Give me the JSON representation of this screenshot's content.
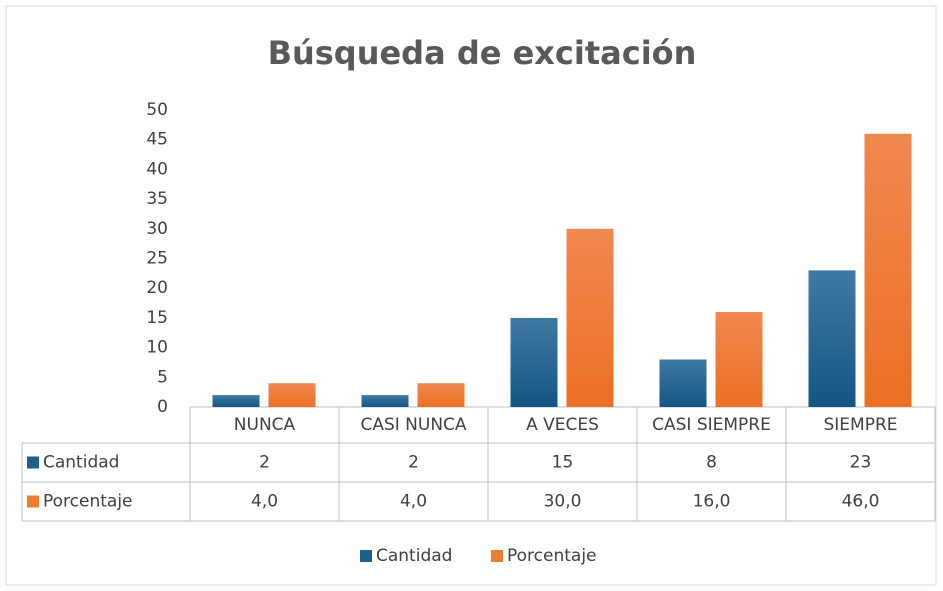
{
  "chart_data": {
    "type": "bar",
    "title": "Búsqueda de excitación",
    "categories": [
      "NUNCA",
      "CASI NUNCA",
      "A VECES",
      "CASI SIEMPRE",
      "SIEMPRE"
    ],
    "series": [
      {
        "name": "Cantidad",
        "color": "#1f5f8b",
        "values": [
          2,
          2,
          15,
          8,
          23
        ]
      },
      {
        "name": "Porcentaje",
        "color": "#ed7d31",
        "values": [
          4,
          4,
          30,
          16,
          46
        ],
        "value_labels": [
          "4,0",
          "4,0",
          "30,0",
          "16,0",
          "46,0"
        ]
      }
    ],
    "ylim": [
      0,
      50
    ],
    "yticks": [
      0,
      5,
      10,
      15,
      20,
      25,
      30,
      35,
      40,
      45,
      50
    ],
    "grid": false,
    "legend": "bottom",
    "data_table": true
  }
}
